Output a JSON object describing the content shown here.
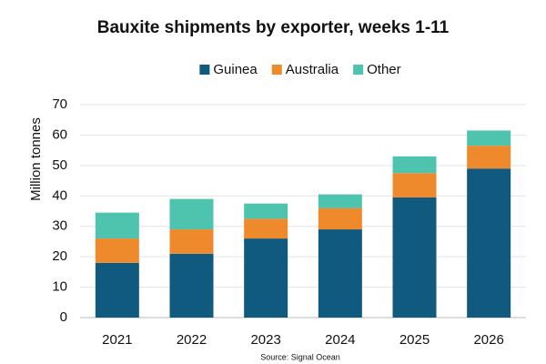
{
  "chart_data": {
    "type": "stacked_bar",
    "title": "Bauxite shipments by exporter, weeks 1-11",
    "y_label": "Million tonnes",
    "source": "Source: Signal Ocean",
    "categories": [
      "2021",
      "2022",
      "2023",
      "2024",
      "2025",
      "2026"
    ],
    "series": [
      {
        "name": "Guinea",
        "color": "#0f5a7e",
        "values": [
          18,
          21,
          26,
          29,
          39.5,
          49
        ]
      },
      {
        "name": "Australia",
        "color": "#ef8a2c",
        "values": [
          8,
          8,
          6.5,
          7,
          8,
          7.5
        ]
      },
      {
        "name": "Other",
        "color": "#4ec3ad",
        "values": [
          8.5,
          10,
          5,
          4.5,
          5.5,
          5
        ]
      }
    ],
    "ylim": [
      0,
      70
    ],
    "yticks": [
      0,
      10,
      20,
      30,
      40,
      50,
      60,
      70
    ],
    "grid": true,
    "legend": "top"
  }
}
